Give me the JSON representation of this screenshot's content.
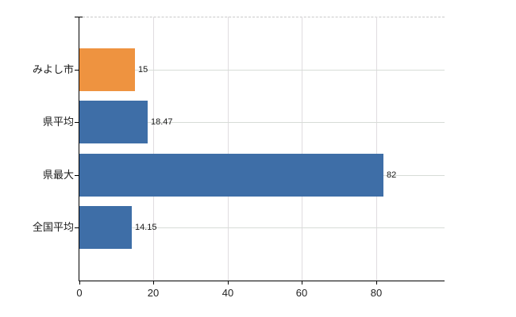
{
  "chart_data": {
    "type": "bar",
    "orientation": "horizontal",
    "title": "",
    "xlabel": "",
    "ylabel": "",
    "categories": [
      "みよし市",
      "県平均",
      "県最大",
      "全国平均"
    ],
    "values": [
      15,
      18.47,
      82,
      14.15
    ],
    "value_labels": [
      "15",
      "18.47",
      "82",
      "14.15"
    ],
    "bar_colors": [
      "#EE9340",
      "#3E6EA7",
      "#3E6EA7",
      "#3E6EA7"
    ],
    "highlight_color": "#EE9340",
    "default_color": "#3E6EA7",
    "x_ticks": [
      0,
      20,
      40,
      60,
      80
    ],
    "x_tick_labels": [
      "0",
      "20",
      "40",
      "60",
      "80"
    ],
    "xlim": [
      0,
      98.4
    ],
    "grid": true,
    "legend": "none"
  }
}
